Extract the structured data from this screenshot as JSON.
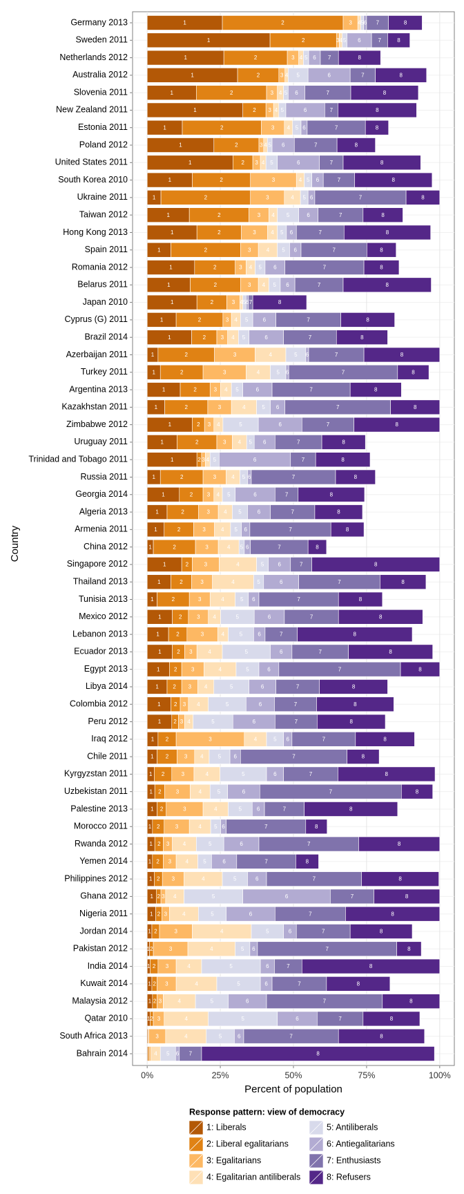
{
  "chart_data": {
    "type": "stacked-barh",
    "x_label": "Percent of population",
    "y_label": "Country",
    "legend_title": "Response pattern: view of democracy",
    "segment_labels": [
      "1",
      "2",
      "3",
      "4",
      "5",
      "6",
      "7",
      "8"
    ],
    "xlim": [
      -5,
      105
    ],
    "xticks": [
      {
        "value": 0,
        "label": "0%"
      },
      {
        "value": 25,
        "label": "25%"
      },
      {
        "value": 50,
        "label": "50%"
      },
      {
        "value": 75,
        "label": "75%"
      },
      {
        "value": 100,
        "label": "100%"
      }
    ],
    "grid": true,
    "categories": [
      "Germany 2013",
      "Sweden 2011",
      "Netherlands 2012",
      "Australia 2012",
      "Slovenia 2011",
      "New Zealand 2011",
      "Estonia 2011",
      "Poland 2012",
      "United States 2011",
      "South Korea 2010",
      "Ukraine 2011",
      "Taiwan 2012",
      "Hong Kong 2013",
      "Spain 2011",
      "Romania 2012",
      "Belarus 2011",
      "Japan 2010",
      "Cyprus (G) 2011",
      "Brazil 2014",
      "Azerbaijan 2011",
      "Turkey 2011",
      "Argentina 2013",
      "Kazakhstan 2011",
      "Zimbabwe 2012",
      "Uruguay 2011",
      "Trinidad and Tobago 2011",
      "Russia 2011",
      "Georgia 2014",
      "Algeria 2013",
      "Armenia 2011",
      "China 2012",
      "Singapore 2012",
      "Thailand 2013",
      "Tunisia 2013",
      "Mexico 2012",
      "Lebanon 2013",
      "Ecuador 2013",
      "Egypt 2013",
      "Libya 2014",
      "Colombia 2012",
      "Peru 2012",
      "Iraq 2012",
      "Chile 2011",
      "Kyrgyzstan 2011",
      "Uzbekistan 2011",
      "Palestine 2013",
      "Morocco 2011",
      "Rwanda 2012",
      "Yemen 2014",
      "Philippines 2012",
      "Ghana 2012",
      "Nigeria 2011",
      "Jordan 2014",
      "Pakistan 2012",
      "India 2014",
      "Kuwait 2014",
      "Malaysia 2012",
      "Qatar 2010",
      "South Africa 2013",
      "Bahrain 2014"
    ],
    "series": [
      {
        "name": "1: Liberals",
        "color": "#b35806",
        "values": [
          25.7,
          42,
          26.2,
          30.9,
          16.8,
          32.7,
          12,
          22.8,
          29.3,
          15.4,
          4.7,
          14.4,
          17,
          8.1,
          16.2,
          14.7,
          17,
          9.9,
          15.2,
          3.7,
          4.5,
          11.3,
          6,
          15.4,
          10.2,
          17,
          4.5,
          11,
          6.8,
          5.8,
          2.1,
          11.8,
          8.1,
          3.4,
          8.6,
          7.3,
          8.6,
          7.6,
          6.8,
          8.1,
          8.4,
          3.7,
          3.4,
          2.4,
          2.6,
          3.4,
          1.8,
          2.6,
          1.8,
          2.4,
          3.1,
          2.9,
          1.6,
          0.8,
          1,
          1.6,
          1.8,
          1,
          0.3,
          0.3
        ]
      },
      {
        "name": "2: Liberal egalitarians",
        "color": "#e08214",
        "values": [
          41.3,
          22.7,
          21.7,
          14.1,
          24,
          7.9,
          27,
          15.4,
          6.8,
          19.9,
          30.6,
          20.4,
          15.2,
          23.8,
          13.9,
          17.2,
          10.2,
          16,
          8.6,
          19.3,
          14.6,
          10.2,
          14.7,
          4.2,
          13.6,
          1.6,
          14.6,
          8.1,
          10.7,
          10.1,
          14.4,
          3.6,
          7.1,
          11,
          5.5,
          6.3,
          4.2,
          4.2,
          5,
          3.2,
          2.3,
          6.2,
          6.8,
          6,
          3.4,
          3.1,
          4,
          2.9,
          3.7,
          2.8,
          1.6,
          2.1,
          2.6,
          1.3,
          2.7,
          1.8,
          1.6,
          1.1,
          0.2,
          0.5
        ]
      },
      {
        "name": "3: Egalitarians",
        "color": "#fdb863",
        "values": [
          5,
          1,
          3.9,
          2.1,
          3.7,
          2.6,
          7.9,
          1.6,
          2.6,
          15.7,
          11.6,
          6.8,
          8.9,
          6.1,
          3.7,
          6.1,
          4.5,
          2.9,
          3.7,
          13.9,
          14.7,
          3.6,
          8.1,
          3.2,
          5.3,
          1.3,
          7.9,
          3.7,
          6.8,
          7.1,
          7.8,
          9.2,
          7.1,
          7.1,
          6.8,
          10.5,
          4.2,
          7.6,
          5.5,
          2.8,
          2.1,
          23.3,
          6,
          7.6,
          8.7,
          12.6,
          8.6,
          3.1,
          4.4,
          7.4,
          1.6,
          2.6,
          11.2,
          11.8,
          6.2,
          6.5,
          2.1,
          3.7,
          5.8,
          0.5
        ]
      },
      {
        "name": "4: Egalitarian antiliberals",
        "color": "#fee0b6",
        "values": [
          1,
          1,
          1.6,
          1.1,
          2.1,
          1.8,
          2.8,
          1.3,
          1.9,
          2.7,
          5.5,
          2.9,
          3.4,
          6.5,
          3.1,
          3.6,
          1,
          3.1,
          3.7,
          10.5,
          8.3,
          3.7,
          8.6,
          3.1,
          4.9,
          1.6,
          4.7,
          2.9,
          4.8,
          5.5,
          7.1,
          12.8,
          14.1,
          8.6,
          4.2,
          3.6,
          8.7,
          11,
          5.5,
          6.8,
          2.9,
          7.6,
          5,
          8.9,
          6.8,
          8.6,
          7.3,
          8.2,
          7.4,
          13.1,
          6.3,
          9.9,
          20.2,
          16.2,
          8.7,
          13.9,
          11,
          15.1,
          13.9,
          3.2
        ]
      },
      {
        "name": "5: Antiliberals",
        "color": "#d8daeb",
        "values": [
          1,
          1.6,
          1.8,
          6.8,
          1.6,
          2.4,
          2.9,
          1.6,
          3.9,
          2.6,
          2.6,
          7.3,
          3.1,
          4.2,
          3.4,
          3.9,
          1.1,
          4.2,
          3.6,
          6.8,
          5.3,
          3.9,
          4.7,
          12.1,
          2.6,
          3.1,
          2.6,
          4.4,
          5.2,
          3.7,
          1.8,
          4,
          3.4,
          4.5,
          11.5,
          8.7,
          16.4,
          7.8,
          12,
          12.9,
          13.6,
          5.8,
          7.1,
          15.9,
          6,
          8.2,
          3.4,
          9.4,
          4.7,
          8.6,
          20.1,
          9.5,
          11,
          5,
          20.1,
          14.9,
          11.2,
          23.6,
          9.6,
          5.2
        ]
      },
      {
        "name": "6: Antiegalitarians",
        "color": "#b2abd2",
        "values": [
          1,
          8.4,
          4,
          14.4,
          5.7,
          13.3,
          2.1,
          7.6,
          14.4,
          3.9,
          2.3,
          6.6,
          3.4,
          3.9,
          6.8,
          5,
          0.8,
          7.9,
          11.8,
          1,
          1,
          10,
          5,
          14.9,
          7.1,
          24.4,
          1.3,
          13.6,
          7.8,
          2.9,
          2.1,
          7.6,
          12,
          3.6,
          10.3,
          3.9,
          7.4,
          6.8,
          9.2,
          9.7,
          14.4,
          2.9,
          3.6,
          5.8,
          11,
          4.2,
          1.9,
          12,
          8.6,
          6.5,
          29.9,
          16.7,
          4.4,
          2.6,
          4.8,
          4,
          13.1,
          13.6,
          3.2,
          1.3
        ]
      },
      {
        "name": "7: Enthusiasts",
        "color": "#8073ac",
        "values": [
          7.5,
          5.5,
          6.2,
          8.6,
          15.7,
          4.5,
          19.9,
          14.6,
          8.1,
          10.7,
          31.2,
          15.4,
          16.3,
          22.5,
          27,
          16.5,
          1.5,
          22.2,
          18.1,
          18.9,
          37.2,
          26.7,
          36.1,
          17.8,
          16,
          8.6,
          28.8,
          7.9,
          15.2,
          27.7,
          19.7,
          7.3,
          27.8,
          27.2,
          18.5,
          11,
          19.3,
          41.6,
          14.9,
          14.4,
          14.4,
          21.7,
          36.4,
          18.6,
          48.4,
          13.6,
          27.2,
          34.1,
          20.2,
          32.5,
          14.9,
          24.1,
          18.4,
          47.6,
          9.4,
          18.6,
          39.6,
          15.7,
          32.4,
          7.6
        ]
      },
      {
        "name": "8: Refusers",
        "color": "#542788",
        "values": [
          11.5,
          7.6,
          14.4,
          17.5,
          23.1,
          26.9,
          7.9,
          13.1,
          26.5,
          26.5,
          11.5,
          13.6,
          29.6,
          10,
          12,
          30.1,
          18.4,
          18.4,
          17.5,
          25.9,
          10.7,
          17.5,
          16.8,
          29.3,
          14.9,
          18.6,
          13.6,
          22.7,
          16.3,
          11.3,
          6.3,
          43.7,
          15.7,
          15,
          28.8,
          39.3,
          28.8,
          13.4,
          23.3,
          26.4,
          23.3,
          20.2,
          11,
          33.2,
          10.7,
          31.9,
          7.3,
          27.7,
          7.8,
          26.4,
          22.5,
          32.2,
          21.2,
          8.4,
          47.1,
          21.7,
          19.6,
          19.4,
          29.4,
          79.6
        ]
      }
    ]
  }
}
